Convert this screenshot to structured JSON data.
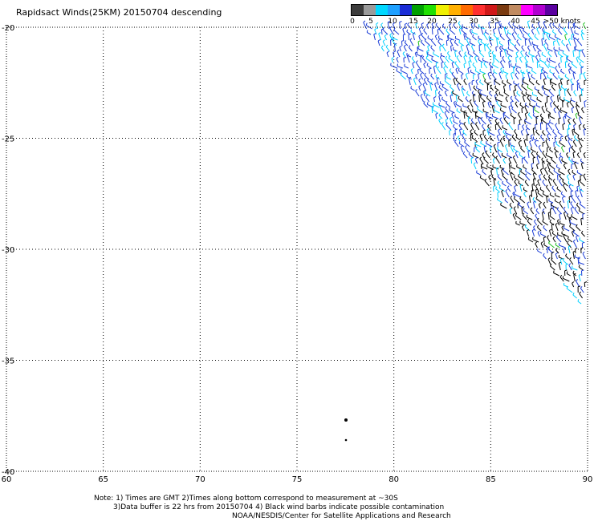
{
  "title": "Rapidsact Winds(25KM) 20150704 descending",
  "legend": {
    "labels": [
      "0",
      "5",
      "10",
      "15",
      "20",
      "25",
      "30",
      "35",
      "40",
      "45",
      ">50 knots"
    ],
    "colors": [
      "#3c3c3c",
      "#9a9a9a",
      "#00d8ff",
      "#1ea0ff",
      "#1a2cd6",
      "#00a000",
      "#20e000",
      "#f0f000",
      "#ffb000",
      "#ff6a00",
      "#ff3030",
      "#d01818",
      "#7a3a10",
      "#c08a60",
      "#ff00ff",
      "#b000d0",
      "#5a00a0"
    ]
  },
  "axes": {
    "lon_ticks": [
      "60",
      "65",
      "70",
      "75",
      "80",
      "85",
      "90"
    ],
    "lat_ticks": [
      "-20",
      "-25",
      "-30",
      "-35",
      "-40"
    ]
  },
  "notes": {
    "line1": "Note: 1) Times are GMT 2)Times along bottom correspond to measurement at ~30S",
    "line2": "3)Data buffer is 22 hrs from 20150704 4) Black wind barbs indicate possible contamination",
    "line3": "NOAA/NESDIS/Center for Satellite Applications and Research"
  },
  "swath_colors": {
    "cyan": "#00d0ff",
    "blue": "#1a3cd6",
    "black": "#000000",
    "green": "#20c020"
  }
}
